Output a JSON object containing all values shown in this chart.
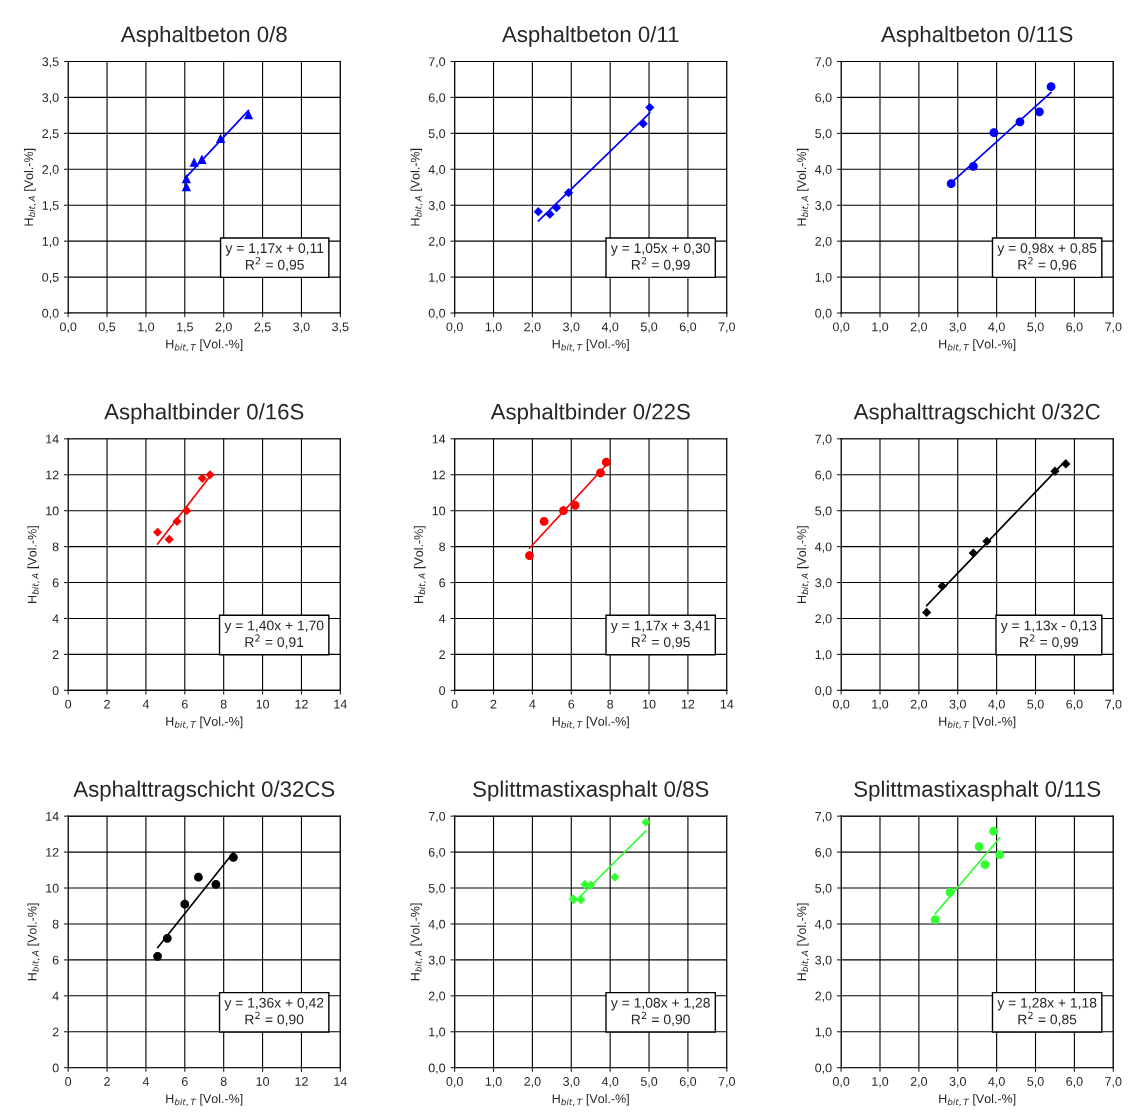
{
  "chart_data": [
    {
      "type": "scatter",
      "title": "Asphaltbeton 0/8",
      "xlabel": "H$_{bit,T}$ [Vol.-%]",
      "ylabel": "H$_{bit,A}$ [Vol.-%]",
      "grid": true,
      "xlim": [
        0,
        3.5
      ],
      "ylim": [
        0,
        3.5
      ],
      "xticks": [
        {
          "value": 0,
          "label": "0,0"
        },
        {
          "value": 0.5,
          "label": "0,5"
        },
        {
          "value": 1,
          "label": "1,0"
        },
        {
          "value": 1.5,
          "label": "1,5"
        },
        {
          "value": 2,
          "label": "2,0"
        },
        {
          "value": 2.5,
          "label": "2,5"
        },
        {
          "value": 3,
          "label": "3,0"
        },
        {
          "value": 3.5,
          "label": "3,5"
        }
      ],
      "yticks": [
        {
          "value": 0,
          "label": "0,0"
        },
        {
          "value": 0.5,
          "label": "0,5"
        },
        {
          "value": 1,
          "label": "1,0"
        },
        {
          "value": 1.5,
          "label": "1,5"
        },
        {
          "value": 2,
          "label": "2,0"
        },
        {
          "value": 2.5,
          "label": "2,5"
        },
        {
          "value": 3,
          "label": "3,0"
        },
        {
          "value": 3.5,
          "label": "3,5"
        }
      ],
      "annotations": [
        "y = 1,17x + 0,11",
        "R$^{2}$ = 0,95"
      ],
      "series": [
        {
          "marker": "triangle",
          "color": "#0000ff",
          "x": [
            1.52,
            1.52,
            1.62,
            1.72,
            1.96,
            2.32
          ],
          "values": [
            1.87,
            1.76,
            2.1,
            2.14,
            2.43,
            2.76
          ]
        },
        {
          "type": "line",
          "marker": "none",
          "color": "#0000ff",
          "x": [
            1.5,
            2.32
          ],
          "values": [
            1.87,
            2.82
          ]
        }
      ]
    },
    {
      "type": "scatter",
      "title": "Asphaltbeton 0/11",
      "xlabel": "H$_{bit,T}$ [Vol.-%]",
      "ylabel": "H$_{bit,A}$ [Vol.-%]",
      "grid": true,
      "xlim": [
        0,
        7
      ],
      "ylim": [
        0,
        7
      ],
      "xticks": [
        {
          "value": 0,
          "label": "0,0"
        },
        {
          "value": 1,
          "label": "1,0"
        },
        {
          "value": 2,
          "label": "2,0"
        },
        {
          "value": 3,
          "label": "3,0"
        },
        {
          "value": 4,
          "label": "4,0"
        },
        {
          "value": 5,
          "label": "5,0"
        },
        {
          "value": 6,
          "label": "6,0"
        },
        {
          "value": 7,
          "label": "7,0"
        }
      ],
      "yticks": [
        {
          "value": 0,
          "label": "0,0"
        },
        {
          "value": 1,
          "label": "1,0"
        },
        {
          "value": 2,
          "label": "2,0"
        },
        {
          "value": 3,
          "label": "3,0"
        },
        {
          "value": 4,
          "label": "4,0"
        },
        {
          "value": 5,
          "label": "5,0"
        },
        {
          "value": 6,
          "label": "6,0"
        },
        {
          "value": 7,
          "label": "7,0"
        }
      ],
      "annotations": [
        "y = 1,05x + 0,30",
        "R$^{2}$ = 0,99"
      ],
      "series": [
        {
          "marker": "diamond",
          "color": "#0000ff",
          "x": [
            2.15,
            2.45,
            2.62,
            2.93,
            4.85,
            5.02
          ],
          "values": [
            2.82,
            2.75,
            2.93,
            3.35,
            5.27,
            5.72
          ]
        },
        {
          "type": "line",
          "marker": "none",
          "color": "#0000ff",
          "x": [
            2.15,
            5.02
          ],
          "values": [
            2.56,
            5.57
          ]
        }
      ]
    },
    {
      "type": "scatter",
      "title": "Asphaltbeton 0/11S",
      "xlabel": "H$_{bit,T}$ [Vol.-%]",
      "ylabel": "H$_{bit,A}$ [Vol.-%]",
      "grid": true,
      "xlim": [
        0,
        7
      ],
      "ylim": [
        0,
        7
      ],
      "xticks": [
        {
          "value": 0,
          "label": "0,0"
        },
        {
          "value": 1,
          "label": "1,0"
        },
        {
          "value": 2,
          "label": "2,0"
        },
        {
          "value": 3,
          "label": "3,0"
        },
        {
          "value": 4,
          "label": "4,0"
        },
        {
          "value": 5,
          "label": "5,0"
        },
        {
          "value": 6,
          "label": "6,0"
        },
        {
          "value": 7,
          "label": "7,0"
        }
      ],
      "yticks": [
        {
          "value": 0,
          "label": "0,0"
        },
        {
          "value": 1,
          "label": "1,0"
        },
        {
          "value": 2,
          "label": "2,0"
        },
        {
          "value": 3,
          "label": "3,0"
        },
        {
          "value": 4,
          "label": "4,0"
        },
        {
          "value": 5,
          "label": "5,0"
        },
        {
          "value": 6,
          "label": "6,0"
        },
        {
          "value": 7,
          "label": "7,0"
        }
      ],
      "annotations": [
        "y = 0,98x + 0,85",
        "R$^{2}$ = 0,96"
      ],
      "series": [
        {
          "marker": "circle",
          "color": "#0000ff",
          "x": [
            2.83,
            3.4,
            3.93,
            4.6,
            5.1,
            5.4
          ],
          "values": [
            3.6,
            4.08,
            5.02,
            5.32,
            5.6,
            6.3
          ]
        },
        {
          "type": "line",
          "marker": "none",
          "color": "#0000ff",
          "x": [
            2.83,
            5.4
          ],
          "values": [
            3.62,
            6.14
          ]
        }
      ]
    },
    {
      "type": "scatter",
      "title": "Asphaltbinder 0/16S",
      "xlabel": "H$_{bit,T}$ [Vol.-%]",
      "ylabel": "H$_{bit,A}$ [Vol.-%]",
      "grid": true,
      "xlim": [
        0,
        14
      ],
      "ylim": [
        0,
        14
      ],
      "xticks": [
        0,
        2,
        4,
        6,
        8,
        10,
        12,
        14
      ],
      "yticks": [
        0,
        2,
        4,
        6,
        8,
        10,
        12,
        14
      ],
      "annotations": [
        "y = 1,40x + 1,70",
        "R$^{2}$ = 0,91"
      ],
      "series": [
        {
          "marker": "diamond",
          "color": "#ff0000",
          "x": [
            4.6,
            5.2,
            5.6,
            6.1,
            6.9,
            7.3
          ],
          "values": [
            8.8,
            8.4,
            9.4,
            10.0,
            11.8,
            12.0
          ]
        },
        {
          "type": "line",
          "marker": "none",
          "color": "#ff0000",
          "x": [
            4.6,
            7.3
          ],
          "values": [
            8.14,
            11.92
          ]
        }
      ]
    },
    {
      "type": "scatter",
      "title": "Asphaltbinder 0/22S",
      "xlabel": "H$_{bit,T}$ [Vol.-%]",
      "ylabel": "H$_{bit,A}$ [Vol.-%]",
      "grid": true,
      "xlim": [
        0,
        14
      ],
      "ylim": [
        0,
        14
      ],
      "xticks": [
        0,
        2,
        4,
        6,
        8,
        10,
        12,
        14
      ],
      "yticks": [
        0,
        2,
        4,
        6,
        8,
        10,
        12,
        14
      ],
      "annotations": [
        "y = 1,17x + 3,41",
        "R$^{2}$ = 0,95"
      ],
      "series": [
        {
          "marker": "circle",
          "color": "#ff0000",
          "x": [
            3.85,
            4.6,
            5.6,
            6.2,
            7.5,
            7.8
          ],
          "values": [
            7.5,
            9.4,
            10.0,
            10.3,
            12.1,
            12.7
          ]
        },
        {
          "type": "line",
          "marker": "none",
          "color": "#ff0000",
          "x": [
            3.85,
            7.8
          ],
          "values": [
            7.91,
            12.54
          ]
        }
      ]
    },
    {
      "type": "scatter",
      "title": "Asphalttragschicht 0/32C",
      "xlabel": "H$_{bit,T}$ [Vol.-%]",
      "ylabel": "H$_{bit,A}$ [Vol.-%]",
      "grid": true,
      "xlim": [
        0,
        7
      ],
      "ylim": [
        0,
        7
      ],
      "xticks": [
        {
          "value": 0,
          "label": "0,0"
        },
        {
          "value": 1,
          "label": "1,0"
        },
        {
          "value": 2,
          "label": "2,0"
        },
        {
          "value": 3,
          "label": "3,0"
        },
        {
          "value": 4,
          "label": "4,0"
        },
        {
          "value": 5,
          "label": "5,0"
        },
        {
          "value": 6,
          "label": "6,0"
        },
        {
          "value": 7,
          "label": "7,0"
        }
      ],
      "yticks": [
        {
          "value": 0,
          "label": "0,0"
        },
        {
          "value": 1,
          "label": "1,0"
        },
        {
          "value": 2,
          "label": "2,0"
        },
        {
          "value": 3,
          "label": "3,0"
        },
        {
          "value": 4,
          "label": "4,0"
        },
        {
          "value": 5,
          "label": "5,0"
        },
        {
          "value": 6,
          "label": "6,0"
        },
        {
          "value": 7,
          "label": "7,0"
        }
      ],
      "annotations": [
        "y = 1,13x - 0,13",
        "R$^{2}$ = 0,99"
      ],
      "series": [
        {
          "marker": "diamond",
          "color": "#000000",
          "x": [
            2.2,
            2.6,
            3.4,
            3.75,
            5.5,
            5.78
          ],
          "values": [
            2.17,
            2.9,
            3.82,
            4.15,
            6.1,
            6.3
          ]
        },
        {
          "type": "line",
          "marker": "none",
          "color": "#000000",
          "x": [
            2.2,
            5.78
          ],
          "values": [
            2.36,
            6.4
          ]
        }
      ]
    },
    {
      "type": "scatter",
      "title": "Asphalttragschicht 0/32CS",
      "xlabel": "H$_{bit,T}$ [Vol.-%]",
      "ylabel": "H$_{bit,A}$ [Vol.-%]",
      "grid": true,
      "xlim": [
        0,
        14
      ],
      "ylim": [
        0,
        14
      ],
      "xticks": [
        0,
        2,
        4,
        6,
        8,
        10,
        12,
        14
      ],
      "yticks": [
        0,
        2,
        4,
        6,
        8,
        10,
        12,
        14
      ],
      "annotations": [
        "y = 1,36x + 0,42",
        "R$^{2}$ = 0,90"
      ],
      "series": [
        {
          "marker": "circle",
          "color": "#000000",
          "x": [
            4.6,
            5.1,
            6.0,
            6.7,
            7.6,
            8.5
          ],
          "values": [
            6.2,
            7.2,
            9.1,
            10.6,
            10.2,
            11.7
          ]
        },
        {
          "type": "line",
          "marker": "none",
          "color": "#000000",
          "x": [
            4.6,
            8.5
          ],
          "values": [
            6.68,
            11.98
          ]
        }
      ]
    },
    {
      "type": "scatter",
      "title": "Splittmastixasphalt 0/8S",
      "xlabel": "H$_{bit,T}$ [Vol.-%]",
      "ylabel": "H$_{bit,A}$ [Vol.-%]",
      "grid": true,
      "xlim": [
        0,
        7
      ],
      "ylim": [
        0,
        7
      ],
      "xticks": [
        {
          "value": 0,
          "label": "0,0"
        },
        {
          "value": 1,
          "label": "1,0"
        },
        {
          "value": 2,
          "label": "2,0"
        },
        {
          "value": 3,
          "label": "3,0"
        },
        {
          "value": 4,
          "label": "4,0"
        },
        {
          "value": 5,
          "label": "5,0"
        },
        {
          "value": 6,
          "label": "6,0"
        },
        {
          "value": 7,
          "label": "7,0"
        }
      ],
      "yticks": [
        {
          "value": 0,
          "label": "0,0"
        },
        {
          "value": 1,
          "label": "1,0"
        },
        {
          "value": 2,
          "label": "2,0"
        },
        {
          "value": 3,
          "label": "3,0"
        },
        {
          "value": 4,
          "label": "4,0"
        },
        {
          "value": 5,
          "label": "5,0"
        },
        {
          "value": 6,
          "label": "6,0"
        },
        {
          "value": 7,
          "label": "7,0"
        }
      ],
      "annotations": [
        "y = 1,08x + 1,28",
        "R$^{2}$ = 0,90"
      ],
      "series": [
        {
          "marker": "diamond",
          "color": "#33ff33",
          "x": [
            3.05,
            3.25,
            3.35,
            3.5,
            4.12,
            4.92
          ],
          "values": [
            4.7,
            4.67,
            5.1,
            5.08,
            5.3,
            6.83
          ]
        },
        {
          "type": "line",
          "marker": "none",
          "color": "#33ff33",
          "x": [
            3.05,
            4.92
          ],
          "values": [
            4.57,
            6.59
          ]
        }
      ]
    },
    {
      "type": "scatter",
      "title": "Splittmastixasphalt 0/11S",
      "xlabel": "H$_{bit,T}$ [Vol.-%]",
      "ylabel": "H$_{bit,A}$ [Vol.-%]",
      "grid": true,
      "xlim": [
        0,
        7
      ],
      "ylim": [
        0,
        7
      ],
      "xticks": [
        {
          "value": 0,
          "label": "0,0"
        },
        {
          "value": 1,
          "label": "1,0"
        },
        {
          "value": 2,
          "label": "2,0"
        },
        {
          "value": 3,
          "label": "3,0"
        },
        {
          "value": 4,
          "label": "4,0"
        },
        {
          "value": 5,
          "label": "5,0"
        },
        {
          "value": 6,
          "label": "6,0"
        },
        {
          "value": 7,
          "label": "7,0"
        }
      ],
      "yticks": [
        {
          "value": 0,
          "label": "0,0"
        },
        {
          "value": 1,
          "label": "1,0"
        },
        {
          "value": 2,
          "label": "2,0"
        },
        {
          "value": 3,
          "label": "3,0"
        },
        {
          "value": 4,
          "label": "4,0"
        },
        {
          "value": 5,
          "label": "5,0"
        },
        {
          "value": 6,
          "label": "6,0"
        },
        {
          "value": 7,
          "label": "7,0"
        }
      ],
      "annotations": [
        "y = 1,28x + 1,18",
        "R$^{2}$ = 0,85"
      ],
      "series": [
        {
          "marker": "circle",
          "color": "#33ff33",
          "x": [
            2.42,
            2.8,
            3.55,
            3.7,
            3.92,
            4.08
          ],
          "values": [
            4.12,
            4.88,
            6.15,
            5.65,
            6.58,
            5.93
          ]
        },
        {
          "type": "line",
          "marker": "none",
          "color": "#33ff33",
          "x": [
            2.42,
            4.08
          ],
          "values": [
            4.28,
            6.4
          ]
        }
      ]
    }
  ]
}
